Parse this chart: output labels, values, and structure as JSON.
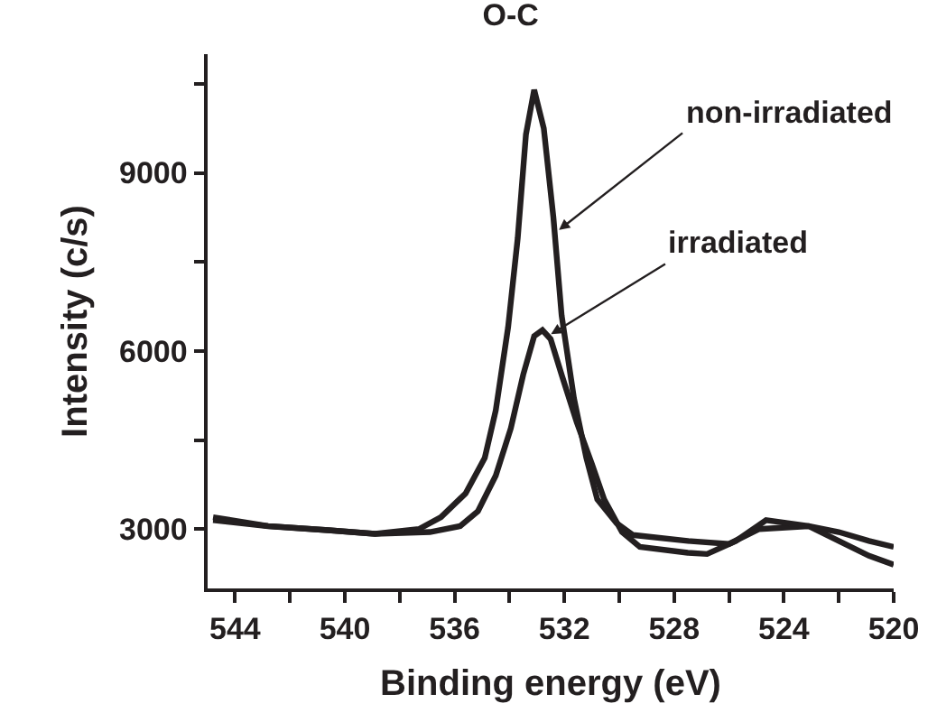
{
  "chart_data": {
    "type": "line",
    "title": "O-C",
    "xlabel": "Binding energy (eV)",
    "ylabel": "Intensity (c/s)",
    "xlim": [
      545,
      520
    ],
    "ylim": [
      2000,
      11000
    ],
    "xticks": [
      544,
      {
        "value": 542,
        "label": null
      },
      540,
      {
        "value": 538,
        "label": null
      },
      536,
      {
        "value": 534,
        "label": null
      },
      532,
      {
        "value": 530,
        "label": null
      },
      528,
      {
        "value": 526,
        "label": null
      },
      524,
      {
        "value": 522,
        "label": null
      },
      520
    ],
    "yticks": [
      3000,
      {
        "value": 4500,
        "label": null
      },
      6000,
      {
        "value": 7500,
        "label": null
      },
      9000,
      {
        "value": 10500,
        "label": null
      }
    ],
    "grid": false,
    "marker": "none",
    "line_style": "solid",
    "series": [
      {
        "color": "#231f20",
        "x": [
          544.8,
          542.8,
          540.6,
          538.9,
          537.3,
          536.5,
          535.6,
          534.9,
          534.5,
          534.05,
          533.7,
          533.4,
          533.1,
          532.75,
          532.4,
          532.1,
          531.65,
          531.2,
          530.8,
          530.1,
          529.5,
          527.5,
          526.0,
          524.9,
          523.1,
          522.0,
          520.9,
          520
        ],
        "values": [
          3200,
          3050,
          2980,
          2920,
          3000,
          3200,
          3600,
          4200,
          5000,
          6400,
          7900,
          9650,
          10400,
          9750,
          8250,
          6600,
          5200,
          4200,
          3500,
          3100,
          2900,
          2800,
          2750,
          3000,
          3050,
          2800,
          2550,
          2400
        ]
      },
      {
        "color": "#231f20",
        "x": [
          544.8,
          542.8,
          540.6,
          538.9,
          536.9,
          535.8,
          535.15,
          534.5,
          533.95,
          533.5,
          533.1,
          532.8,
          532.5,
          532.1,
          531.55,
          531.0,
          530.55,
          529.9,
          529.25,
          527.5,
          526.8,
          525.75,
          524.65,
          523.1,
          522.0,
          520.9,
          520
        ],
        "values": [
          3150,
          3050,
          2980,
          2920,
          2950,
          3050,
          3300,
          3900,
          4700,
          5600,
          6250,
          6350,
          6200,
          5600,
          4800,
          4100,
          3500,
          2950,
          2700,
          2600,
          2580,
          2800,
          3150,
          3050,
          2950,
          2800,
          2700
        ]
      }
    ],
    "annotations": [
      {
        "text": "non-irradiated",
        "x": 532.3,
        "y": 8000
      },
      {
        "text": "irradiated",
        "x": 532.6,
        "y": 6250
      }
    ]
  }
}
